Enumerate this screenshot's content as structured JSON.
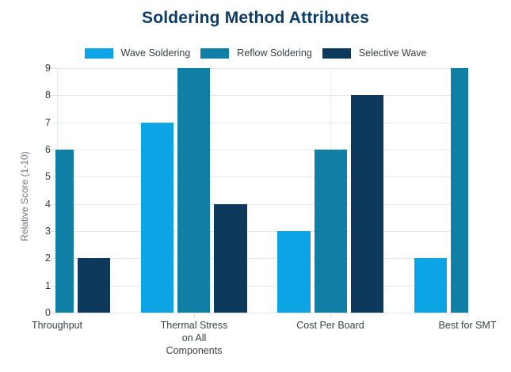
{
  "page": {
    "background": "#ffffff"
  },
  "chart_data": {
    "type": "bar",
    "title": "Soldering Method Attributes",
    "title_color": "#0d3c64",
    "ylabel": "Relative Score (1-10)",
    "xlabel": "",
    "ylim": [
      0,
      9
    ],
    "yticks": [
      0,
      1,
      2,
      3,
      4,
      5,
      6,
      7,
      8,
      9
    ],
    "grid": true,
    "legend_position": "top",
    "categories": [
      "Throughput",
      "Thermal Stress on All Components",
      "Cost Per Board",
      "Best for SMT"
    ],
    "category_lines": [
      [
        "Throughput"
      ],
      [
        "Thermal Stress",
        "on All",
        "Components"
      ],
      [
        "Cost Per Board"
      ],
      [
        "Best for SMT"
      ]
    ],
    "series": [
      {
        "name": "Wave Soldering",
        "color": "#0ca4e4",
        "values": [
          null,
          7,
          3,
          2
        ]
      },
      {
        "name": "Reflow Soldering",
        "color": "#0f7fa6",
        "values": [
          6,
          9,
          6,
          9
        ]
      },
      {
        "name": "Selective Wave",
        "color": "#0d3a5c",
        "values": [
          2,
          4,
          8,
          null
        ]
      }
    ],
    "notes": "Plot area is clipped at both sides: Wave Soldering bar for Throughput and Selective Wave bar for Best for SMT fall outside the visible plot; Reflow bars for Throughput and Best for SMT are partially clipped at the plot edges."
  }
}
